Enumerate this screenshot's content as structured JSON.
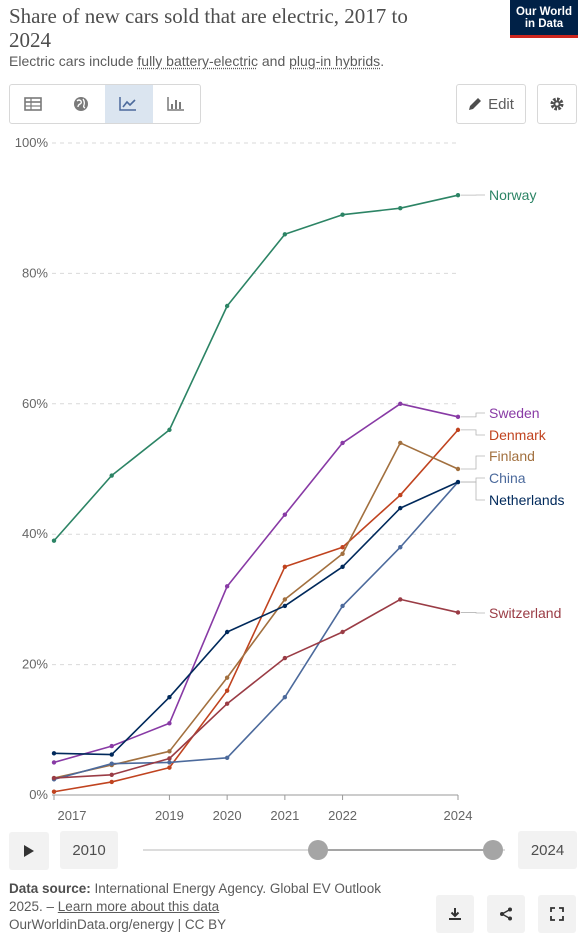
{
  "header": {
    "title": "Share of new cars sold that are electric, 2017 to 2024",
    "subtitle_prefix": "Electric cars include ",
    "subtitle_term1": "fully battery-electric",
    "subtitle_mid": " and ",
    "subtitle_term2": "plug-in hybrids",
    "subtitle_suffix": ".",
    "logo_line1": "Our World",
    "logo_line2": "in Data"
  },
  "toolbar": {
    "tabs": [
      {
        "name": "table",
        "icon": "table-icon",
        "active": false
      },
      {
        "name": "map",
        "icon": "globe-icon",
        "active": false
      },
      {
        "name": "line",
        "icon": "line-chart-icon",
        "active": true
      },
      {
        "name": "bar",
        "icon": "bar-chart-icon",
        "active": false
      }
    ],
    "edit_label": "Edit",
    "edit_icon": "pencil-icon",
    "settings_icon": "gear-icon"
  },
  "chart_data": {
    "type": "line",
    "y_ticks": [
      "0%",
      "20%",
      "40%",
      "60%",
      "80%",
      "100%"
    ],
    "ylim": [
      0,
      100
    ],
    "x_tick_labels": [
      "2017",
      "2019",
      "2020",
      "2021",
      "2022",
      "2024"
    ],
    "x": [
      2017,
      2018,
      2019,
      2020,
      2021,
      2022,
      2023,
      2024
    ],
    "series": [
      {
        "name": "Norway",
        "color": "#2c8465",
        "values": [
          39,
          49,
          56,
          75,
          86,
          89,
          90,
          92
        ]
      },
      {
        "name": "Sweden",
        "color": "#883aa5",
        "values": [
          5,
          7.5,
          11,
          32,
          43,
          54,
          60,
          58
        ]
      },
      {
        "name": "Denmark",
        "color": "#c0431f",
        "values": [
          0.5,
          2,
          4.2,
          16,
          35,
          38,
          46,
          56
        ]
      },
      {
        "name": "Finland",
        "color": "#a2703f",
        "values": [
          2.6,
          4.6,
          6.7,
          18,
          30,
          37,
          54,
          50
        ]
      },
      {
        "name": "China",
        "color": "#4c6a9c",
        "values": [
          2.4,
          4.8,
          5,
          5.7,
          15,
          29,
          38,
          48
        ]
      },
      {
        "name": "Netherlands",
        "color": "#00295b",
        "values": [
          6.4,
          6.2,
          15,
          25,
          29,
          35,
          44,
          48
        ]
      },
      {
        "name": "Switzerland",
        "color": "#9a3c45",
        "values": [
          2.6,
          3.1,
          5.6,
          14,
          21,
          25,
          30,
          28
        ]
      }
    ]
  },
  "timeline": {
    "play_icon": "play-icon",
    "start_year": "2010",
    "end_year": "2024"
  },
  "footer": {
    "source_label": "Data source:",
    "source_text": " International Energy Agency. Global EV Outlook 2025. – ",
    "learn_more": "Learn more about this data",
    "credit": "OurWorldinData.org/energy | CC BY",
    "download_icon": "download-icon",
    "share_icon": "share-icon",
    "fullscreen_icon": "fullscreen-icon"
  }
}
